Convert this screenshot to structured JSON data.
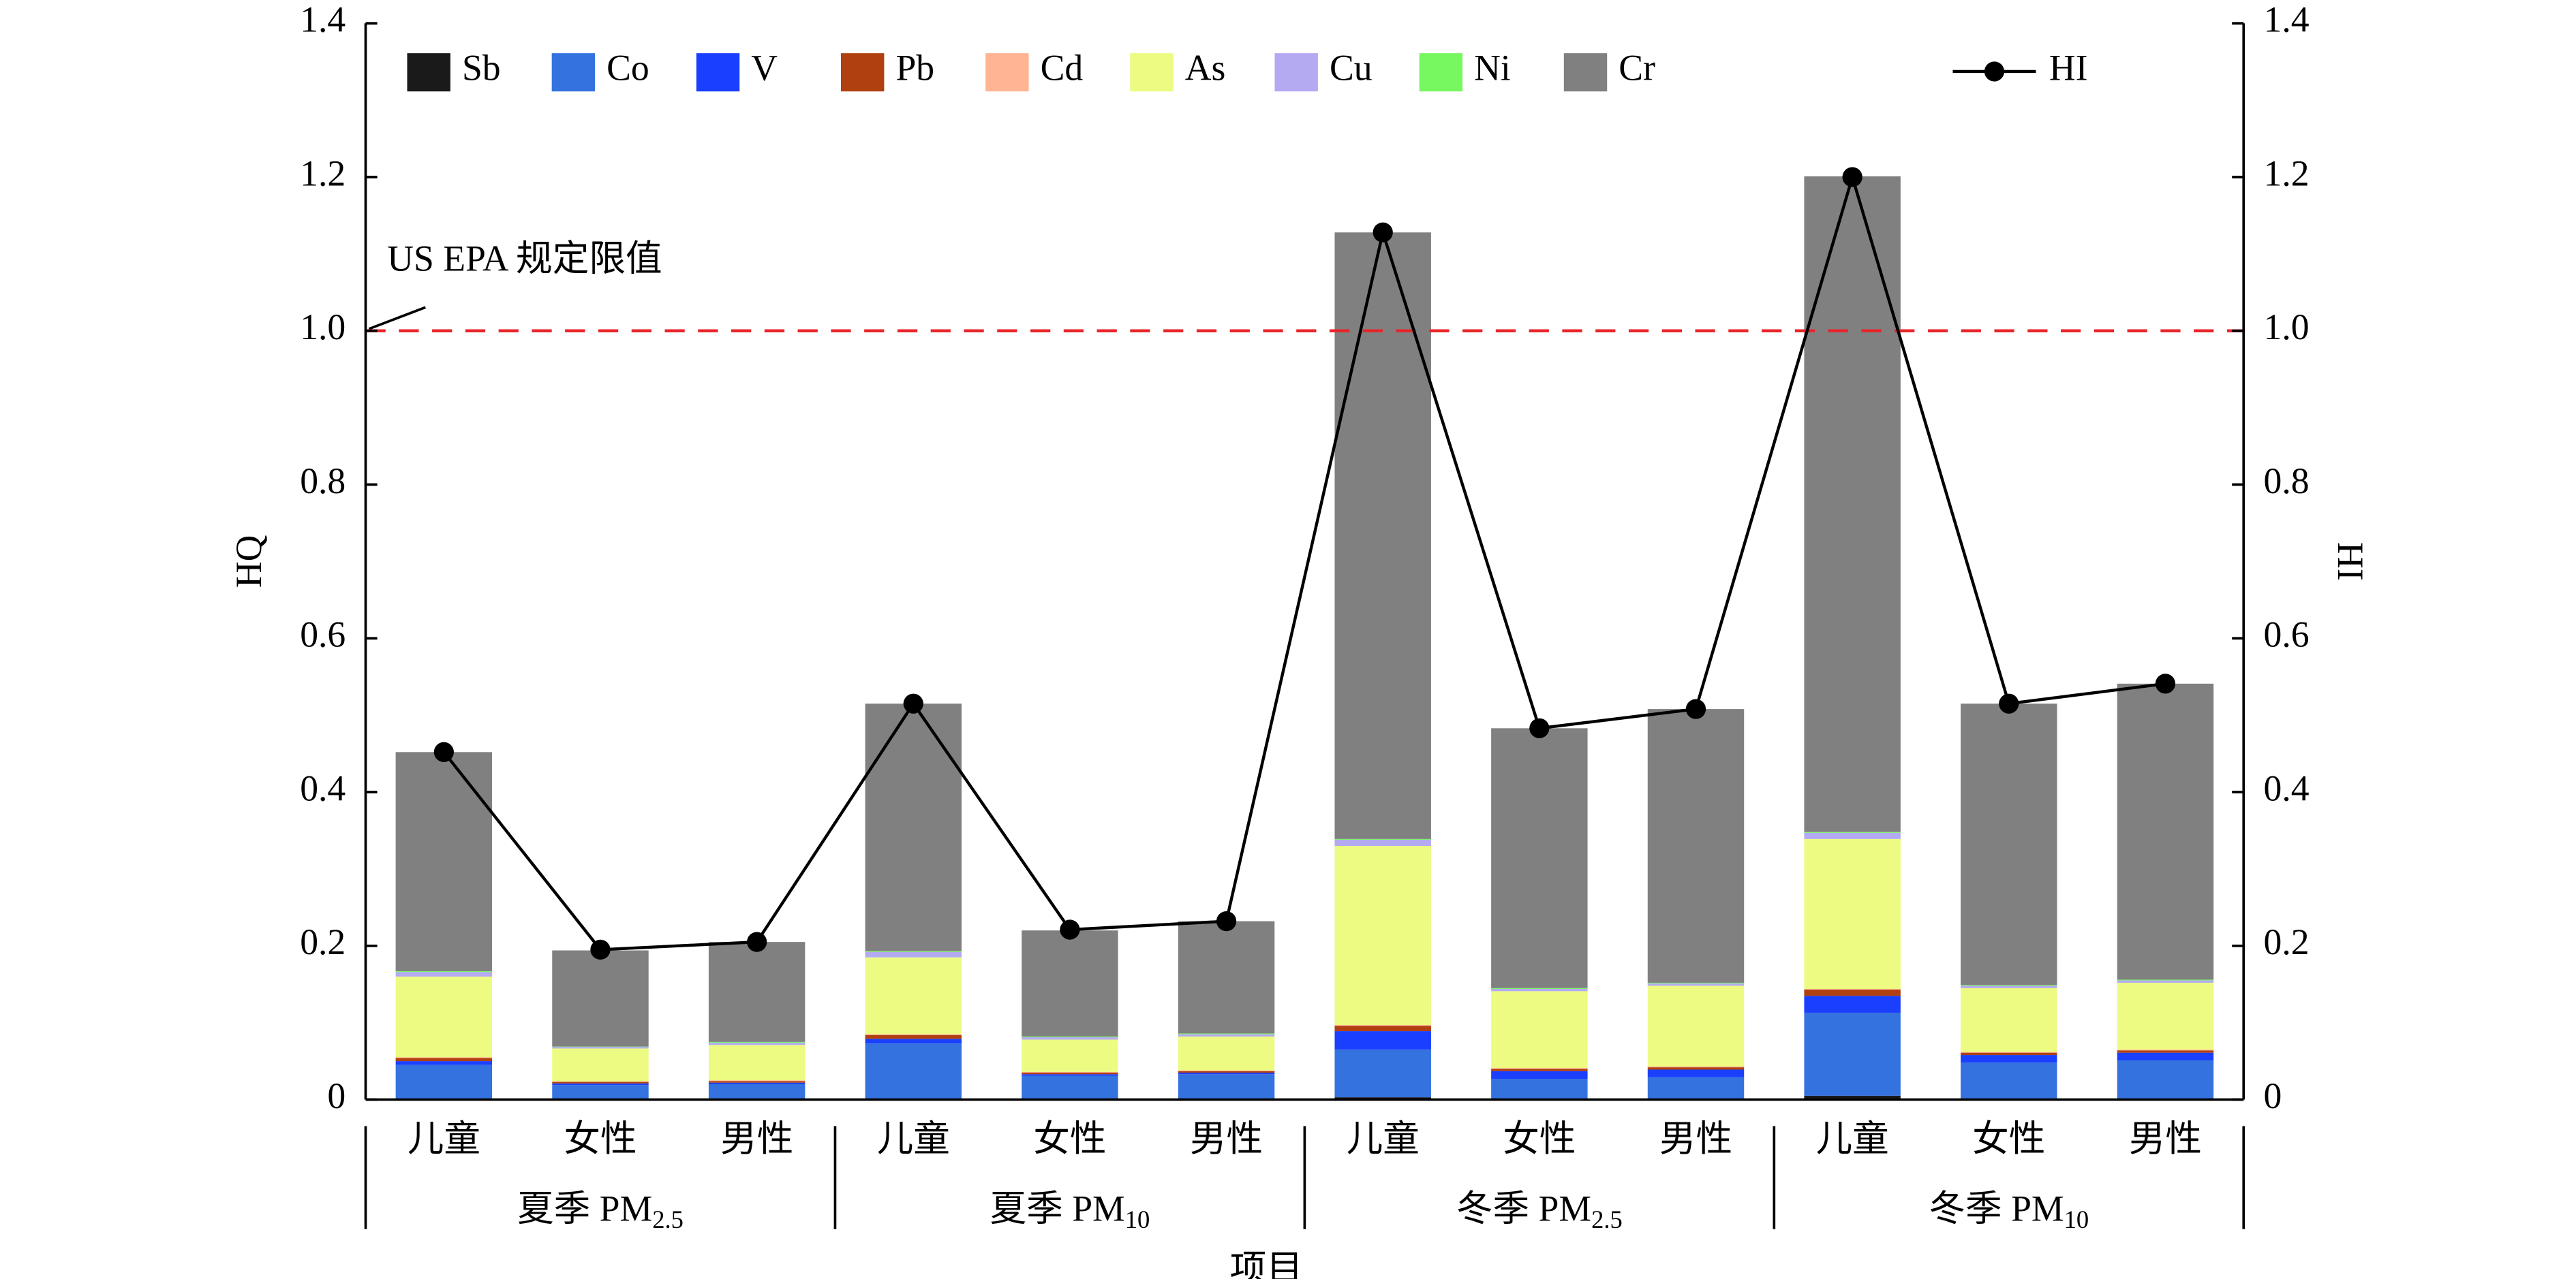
{
  "chart_data": {
    "type": "bar",
    "stacked": true,
    "categories": [
      "儿童",
      "女性",
      "男性",
      "儿童",
      "女性",
      "男性",
      "儿童",
      "女性",
      "男性",
      "儿童",
      "女性",
      "男性"
    ],
    "groups": [
      {
        "label": "夏季 PM",
        "subscript": "2.5"
      },
      {
        "label": "夏季 PM",
        "subscript": "10"
      },
      {
        "label": "冬季 PM",
        "subscript": "2.5"
      },
      {
        "label": "冬季 PM",
        "subscript": "10"
      }
    ],
    "xlabel": "项目",
    "ylabel": "HQ",
    "y2label": "HI",
    "ylim": [
      0,
      1.4
    ],
    "yticks": [
      0,
      0.2,
      0.4,
      0.6,
      0.8,
      {
        "value": 1,
        "label": "1.0"
      },
      1.2,
      1.4
    ],
    "y2lim": [
      0,
      1.4
    ],
    "y2ticks": [
      0,
      0.2,
      0.4,
      0.6,
      0.8,
      {
        "value": 1,
        "label": "1.0"
      },
      1.2,
      1.4
    ],
    "legend": "top",
    "reference_line": {
      "value": 1,
      "color": "#e8252a",
      "label": "US EPA 规定限值"
    },
    "series": [
      {
        "name": "Sb",
        "color": "#1a1a1a",
        "values": [
          0.001,
          0.001,
          0.001,
          0.001,
          0.001,
          0.001,
          0.003,
          0.001,
          0.001,
          0.005,
          0.001,
          0.001
        ]
      },
      {
        "name": "Co",
        "color": "#3472e0",
        "values": [
          0.044,
          0.018,
          0.019,
          0.072,
          0.03,
          0.032,
          0.062,
          0.026,
          0.028,
          0.108,
          0.047,
          0.05
        ]
      },
      {
        "name": "V",
        "color": "#1a3fff",
        "values": [
          0.005,
          0.002,
          0.002,
          0.006,
          0.002,
          0.002,
          0.024,
          0.01,
          0.01,
          0.022,
          0.01,
          0.01
        ]
      },
      {
        "name": "Pb",
        "color": "#b14010",
        "values": [
          0.004,
          0.002,
          0.002,
          0.005,
          0.002,
          0.002,
          0.007,
          0.003,
          0.003,
          0.008,
          0.003,
          0.003
        ]
      },
      {
        "name": "Cd",
        "color": "#ffb494",
        "values": [
          0.001,
          0.0005,
          0.001,
          0.001,
          0.001,
          0.001,
          0.001,
          0.001,
          0.001,
          0.001,
          0.001,
          0.001
        ]
      },
      {
        "name": "As",
        "color": "#edfb82",
        "values": [
          0.105,
          0.043,
          0.046,
          0.1,
          0.042,
          0.044,
          0.233,
          0.1,
          0.105,
          0.195,
          0.083,
          0.087
        ]
      },
      {
        "name": "Cu",
        "color": "#b3aaf2",
        "values": [
          0.006,
          0.002,
          0.003,
          0.007,
          0.003,
          0.003,
          0.008,
          0.003,
          0.003,
          0.008,
          0.003,
          0.003
        ]
      },
      {
        "name": "Ni",
        "color": "#77f760",
        "values": [
          0.001,
          0.0005,
          0.001,
          0.001,
          0.001,
          0.001,
          0.001,
          0.001,
          0.001,
          0.001,
          0.001,
          0.001
        ]
      },
      {
        "name": "Cr",
        "color": "#808080",
        "values": [
          0.285,
          0.125,
          0.13,
          0.322,
          0.138,
          0.146,
          0.789,
          0.338,
          0.356,
          0.853,
          0.366,
          0.385
        ]
      },
      {
        "name": "HI",
        "type": "line",
        "axis": "y2",
        "color": "#000000",
        "values": [
          0.452,
          0.195,
          0.205,
          0.515,
          0.221,
          0.232,
          1.128,
          0.483,
          0.508,
          1.2,
          0.515,
          0.541
        ]
      }
    ]
  }
}
